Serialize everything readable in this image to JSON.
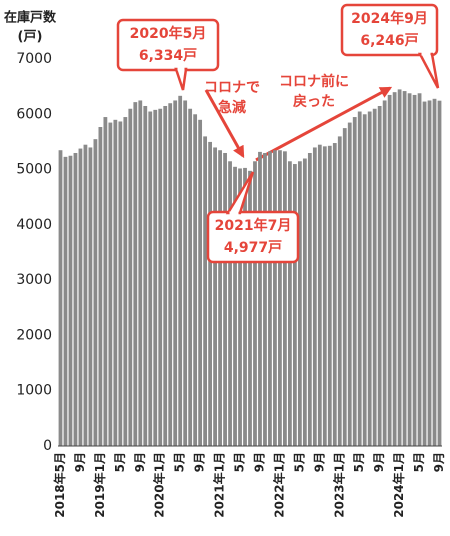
{
  "chart_data": {
    "type": "bar",
    "y_label_lines": [
      "在庫戸数",
      "(戸)"
    ],
    "categories": [
      "2018年5月",
      null,
      null,
      null,
      "9月",
      null,
      null,
      null,
      "2019年1月",
      null,
      null,
      null,
      "5月",
      null,
      null,
      null,
      "9月",
      null,
      null,
      null,
      "2020年1月",
      null,
      null,
      null,
      "5月",
      null,
      null,
      null,
      "9月",
      null,
      null,
      null,
      "2021年1月",
      null,
      null,
      null,
      "5月",
      null,
      null,
      null,
      "9月",
      null,
      null,
      null,
      "2022年1月",
      null,
      null,
      null,
      "5月",
      null,
      null,
      null,
      "9月",
      null,
      null,
      null,
      "2023年1月",
      null,
      null,
      null,
      "5月",
      null,
      null,
      null,
      "9月",
      null,
      null,
      null,
      "2024年1月",
      null,
      null,
      null,
      "5月",
      null,
      null,
      null,
      "9月"
    ],
    "values": [
      5350,
      5230,
      5250,
      5300,
      5380,
      5450,
      5400,
      5550,
      5770,
      5950,
      5850,
      5900,
      5870,
      5950,
      6100,
      6220,
      6250,
      6150,
      6050,
      6080,
      6100,
      6150,
      6200,
      6250,
      6334,
      6250,
      6100,
      6000,
      5900,
      5600,
      5500,
      5400,
      5350,
      5300,
      5150,
      5050,
      5020,
      5030,
      4977,
      5150,
      5320,
      5300,
      5330,
      5350,
      5350,
      5330,
      5150,
      5100,
      5150,
      5200,
      5300,
      5400,
      5450,
      5420,
      5430,
      5480,
      5600,
      5750,
      5850,
      5950,
      6050,
      6000,
      6050,
      6100,
      6150,
      6250,
      6350,
      6400,
      6450,
      6420,
      6380,
      6350,
      6380,
      6230,
      6250,
      6280,
      6246
    ],
    "color": "#8a8a8a",
    "ylim": [
      0,
      7000
    ],
    "yticks": [
      0,
      1000,
      2000,
      3000,
      4000,
      5000,
      6000,
      7000
    ],
    "grid": false,
    "callouts": [
      [
        "2020年5月",
        "6,334戸"
      ],
      [
        "2021年7月",
        "4,977戸"
      ],
      [
        "2024年9月",
        "6,246戸"
      ]
    ],
    "notes": [
      [
        "コロナで",
        "急減"
      ],
      [
        "コロナ前に",
        "戻った"
      ]
    ]
  }
}
